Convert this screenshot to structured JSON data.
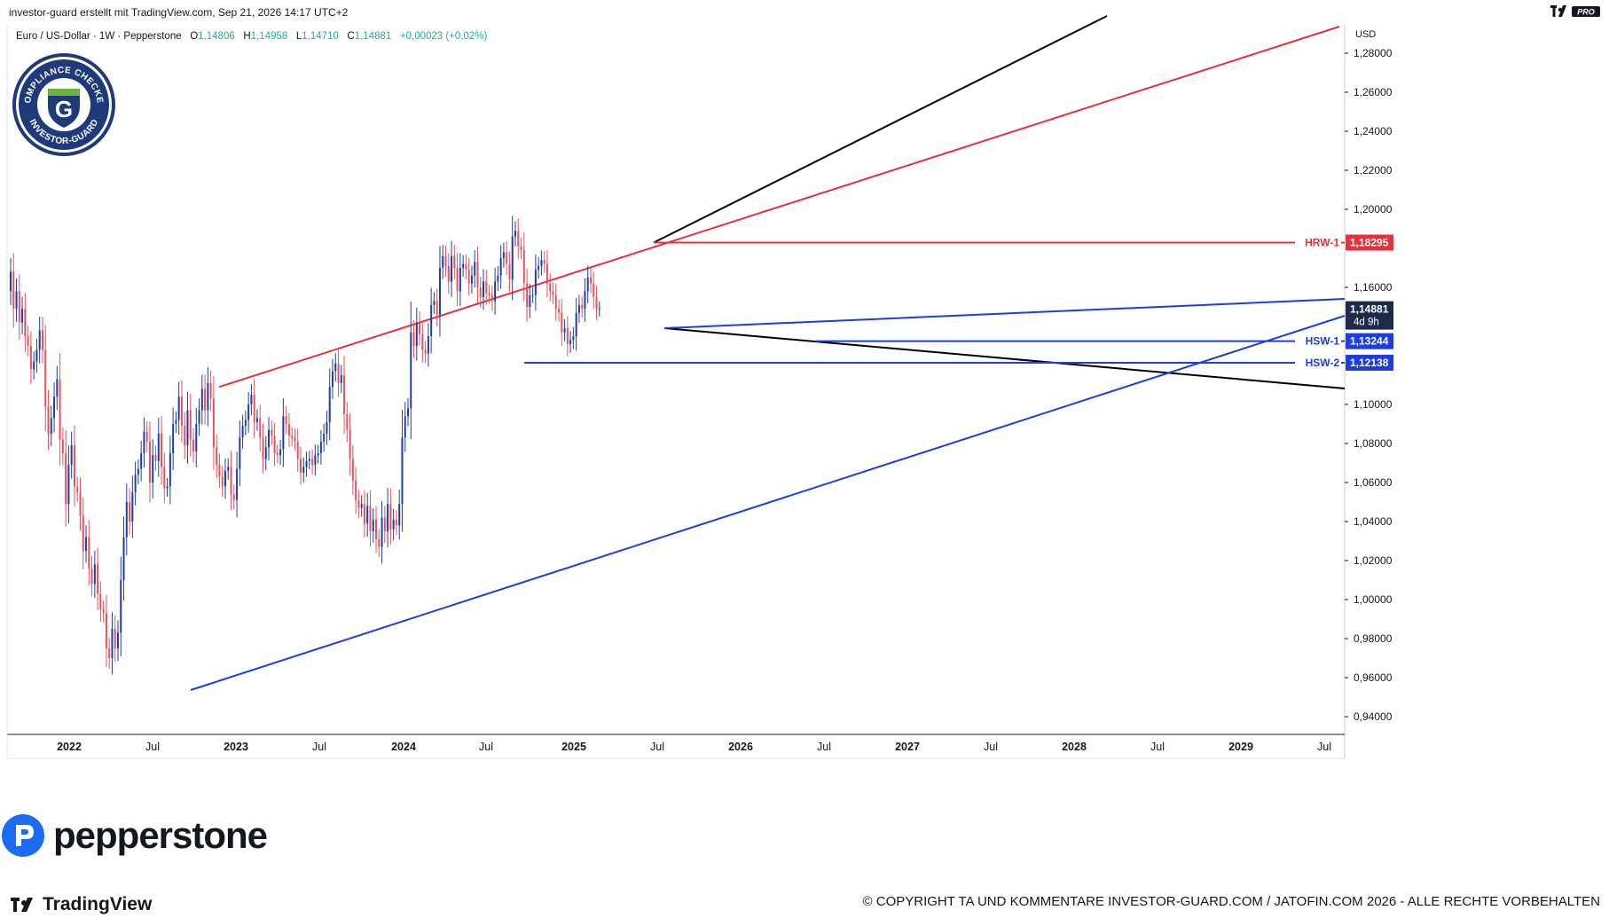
{
  "header": {
    "credit": "investor-guard erstellt mit TradingView.com, Sep 21, 2026 14:17 UTC+2",
    "pro_badge": "PRO"
  },
  "symbol_bar": {
    "name": "Euro / US-Dollar · 1W · Pepperstone",
    "open_label": "O",
    "open": "1,14806",
    "high_label": "H",
    "high": "1,14958",
    "low_label": "L",
    "low": "1,14710",
    "close_label": "C",
    "close": "1,14881",
    "change": "+0,00023 (+0,02%)"
  },
  "watermark": {
    "brand": "pepperstone",
    "badge_text": "COMPLIANCE CHECKED · INVESTOR-GUARD",
    "badge_letter": "G"
  },
  "footer": {
    "tradingview": "TradingView",
    "copyright": "© COPYRIGHT TA UND KOMMENTARE INVESTOR-GUARD.COM / JATOFIN.COM 2026 - ALLE RECHTE VORBEHALTEN"
  },
  "colors": {
    "up": "#1e3da8",
    "down": "#ef4f5a",
    "resistance": "#e8303c",
    "support": "#1d3de0",
    "trend_black": "#000000",
    "current_price_bg": "#1e2a4a"
  },
  "chart_data": {
    "type": "candlestick",
    "timeframe": "1W",
    "currency_label": "USD",
    "ylim": [
      0.93,
      1.3
    ],
    "y_ticks": [
      "1,28000",
      "1,26000",
      "1,24000",
      "1,22000",
      "1,20000",
      "1,16000",
      "1,10000",
      "1,08000",
      "1,06000",
      "1,04000",
      "1,02000",
      "1,00000",
      "0,98000",
      "0,96000",
      "0,94000"
    ],
    "x_ticks": [
      "2022",
      "Jul",
      "2023",
      "Jul",
      "2024",
      "Jul",
      "2025",
      "Jul",
      "2026",
      "Jul",
      "2027",
      "Jul",
      "2028",
      "Jul",
      "2029",
      "Jul"
    ],
    "price_levels": [
      {
        "label": "HRW-1",
        "value": "1,18295",
        "color": "#e8303c"
      },
      {
        "label": "HSW-1",
        "value": "1,13244",
        "color": "#1d3de0"
      },
      {
        "label": "HSW-2",
        "value": "1,12138",
        "color": "#1d3de0"
      }
    ],
    "current_price": {
      "value": "1,14881",
      "countdown": "4d 9h"
    },
    "closes": [
      1.168,
      1.149,
      1.158,
      1.142,
      1.149,
      1.135,
      1.13,
      1.118,
      1.122,
      1.128,
      1.138,
      1.128,
      1.099,
      1.085,
      1.093,
      1.104,
      1.113,
      1.082,
      1.075,
      1.049,
      1.069,
      1.079,
      1.058,
      1.055,
      1.043,
      1.025,
      1.032,
      1.016,
      1.008,
      1.018,
      1.003,
      0.995,
      0.993,
      0.975,
      0.97,
      0.985,
      0.975,
      0.983,
      1.01,
      1.032,
      1.05,
      1.04,
      1.055,
      1.064,
      1.067,
      1.075,
      1.086,
      1.081,
      1.06,
      1.074,
      1.071,
      1.085,
      1.068,
      1.057,
      1.058,
      1.075,
      1.09,
      1.092,
      1.104,
      1.089,
      1.079,
      1.097,
      1.082,
      1.076,
      1.09,
      1.097,
      1.108,
      1.097,
      1.111,
      1.103,
      1.078,
      1.069,
      1.063,
      1.058,
      1.066,
      1.068,
      1.054,
      1.051,
      1.067,
      1.083,
      1.089,
      1.092,
      1.1,
      1.105,
      1.091,
      1.093,
      1.083,
      1.072,
      1.078,
      1.087,
      1.084,
      1.075,
      1.074,
      1.077,
      1.094,
      1.09,
      1.084,
      1.083,
      1.081,
      1.072,
      1.065,
      1.068,
      1.071,
      1.072,
      1.069,
      1.074,
      1.075,
      1.081,
      1.085,
      1.091,
      1.109,
      1.117,
      1.121,
      1.111,
      1.115,
      1.095,
      1.087,
      1.072,
      1.061,
      1.051,
      1.047,
      1.049,
      1.039,
      1.048,
      1.035,
      1.041,
      1.031,
      1.027,
      1.042,
      1.035,
      1.049,
      1.036,
      1.041,
      1.038,
      1.049,
      1.083,
      1.094,
      1.098,
      1.137,
      1.13,
      1.142,
      1.136,
      1.128,
      1.126,
      1.135,
      1.151,
      1.153,
      1.146,
      1.17,
      1.176,
      1.171,
      1.163,
      1.176,
      1.17,
      1.158,
      1.17,
      1.172,
      1.169,
      1.162,
      1.166,
      1.173,
      1.16,
      1.155,
      1.163,
      1.157,
      1.156,
      1.153,
      1.163,
      1.166,
      1.175,
      1.178,
      1.172,
      1.164,
      1.186,
      1.189,
      1.181,
      1.179,
      1.162,
      1.15,
      1.156,
      1.156,
      1.169,
      1.171,
      1.174,
      1.172,
      1.162,
      1.158,
      1.156,
      1.149,
      1.147,
      1.137,
      1.139,
      1.131,
      1.133,
      1.135,
      1.147,
      1.151,
      1.149,
      1.158,
      1.165,
      1.162,
      1.155,
      1.149,
      1.149
    ]
  }
}
